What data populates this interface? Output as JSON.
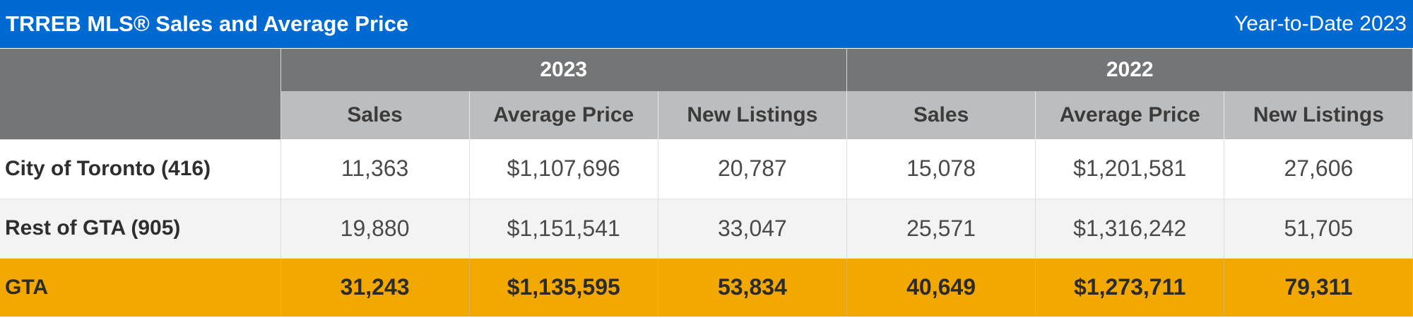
{
  "header": {
    "title": "TRREB MLS® Sales and Average Price",
    "period": "Year-to-Date 2023"
  },
  "years": [
    "2023",
    "2022"
  ],
  "columns": [
    "Sales",
    "Average Price",
    "New Listings",
    "Sales",
    "Average Price",
    "New Listings"
  ],
  "rows": [
    {
      "label": "City of Toronto (416)",
      "values": [
        "11,363",
        "$1,107,696",
        "20,787",
        "15,078",
        "$1,201,581",
        "27,606"
      ]
    },
    {
      "label": "Rest of GTA (905)",
      "values": [
        "19,880",
        "$1,151,541",
        "33,047",
        "25,571",
        "$1,316,242",
        "51,705"
      ]
    }
  ],
  "total": {
    "label": "GTA",
    "values": [
      "31,243",
      "$1,135,595",
      "53,834",
      "40,649",
      "$1,273,711",
      "79,311"
    ]
  },
  "colors": {
    "title_bar": "#006ad3",
    "year_header": "#737577",
    "sub_header": "#bcbdbe",
    "total_row": "#f3a800",
    "alt_row": "#f3f3f3"
  }
}
